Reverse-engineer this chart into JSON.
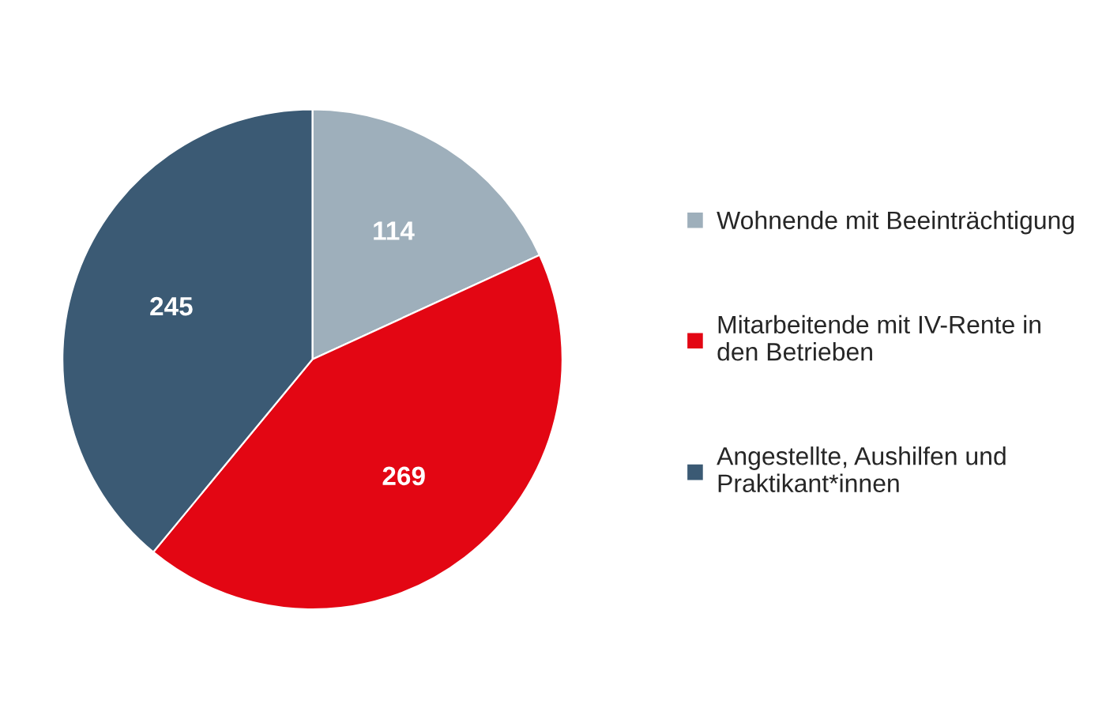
{
  "chart_data": {
    "type": "pie",
    "categories": [
      "Wohnende mit Beeinträchtigung",
      "Mitarbeitende mit IV-Rente in\nden Betrieben",
      "Angestellte, Aushilfen und\nPraktikant*innen"
    ],
    "values": [
      114,
      269,
      245
    ],
    "colors": [
      "#9eafbb",
      "#e30613",
      "#3b5a74"
    ],
    "data_labels": true,
    "legend": "right"
  }
}
